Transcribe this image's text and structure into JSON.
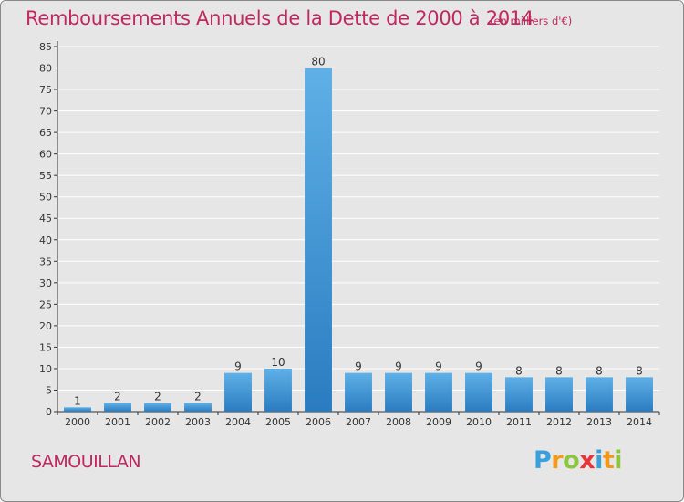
{
  "header": {
    "title": "Remboursements Annuels de la Dette de 2000 à 2014",
    "subtitle": "(en milliers d'€)"
  },
  "footer": {
    "commune": "SAMOUILLAN",
    "logo_letters": [
      "P",
      "r",
      "o",
      "x",
      "i",
      "t",
      "i"
    ],
    "logo_colors": [
      "#3aa0db",
      "#f39a1c",
      "#8cc63f",
      "#e8353b",
      "#3aa0db",
      "#f39a1c",
      "#8cc63f"
    ]
  },
  "colors": {
    "title": "#c0285f",
    "bar_light": "#5fb0e6",
    "bar_dark": "#2a7cc0",
    "grid": "#ffffff",
    "background": "#e6e6e6"
  },
  "chart_data": {
    "type": "bar",
    "categories": [
      "2000",
      "2001",
      "2002",
      "2003",
      "2004",
      "2005",
      "2006",
      "2007",
      "2008",
      "2009",
      "2010",
      "2011",
      "2012",
      "2013",
      "2014"
    ],
    "values": [
      1,
      2,
      2,
      2,
      9,
      10,
      80,
      9,
      9,
      9,
      9,
      8,
      8,
      8,
      8
    ],
    "data_labels": [
      "1",
      "2",
      "2",
      "2",
      "9",
      "10",
      "80",
      "9",
      "9",
      "9",
      "9",
      "8",
      "8",
      "8",
      "8"
    ],
    "ylim": [
      0,
      85
    ],
    "yticks": [
      0,
      5,
      10,
      15,
      20,
      25,
      30,
      35,
      40,
      45,
      50,
      55,
      60,
      65,
      70,
      75,
      80,
      85
    ],
    "grid": true
  }
}
